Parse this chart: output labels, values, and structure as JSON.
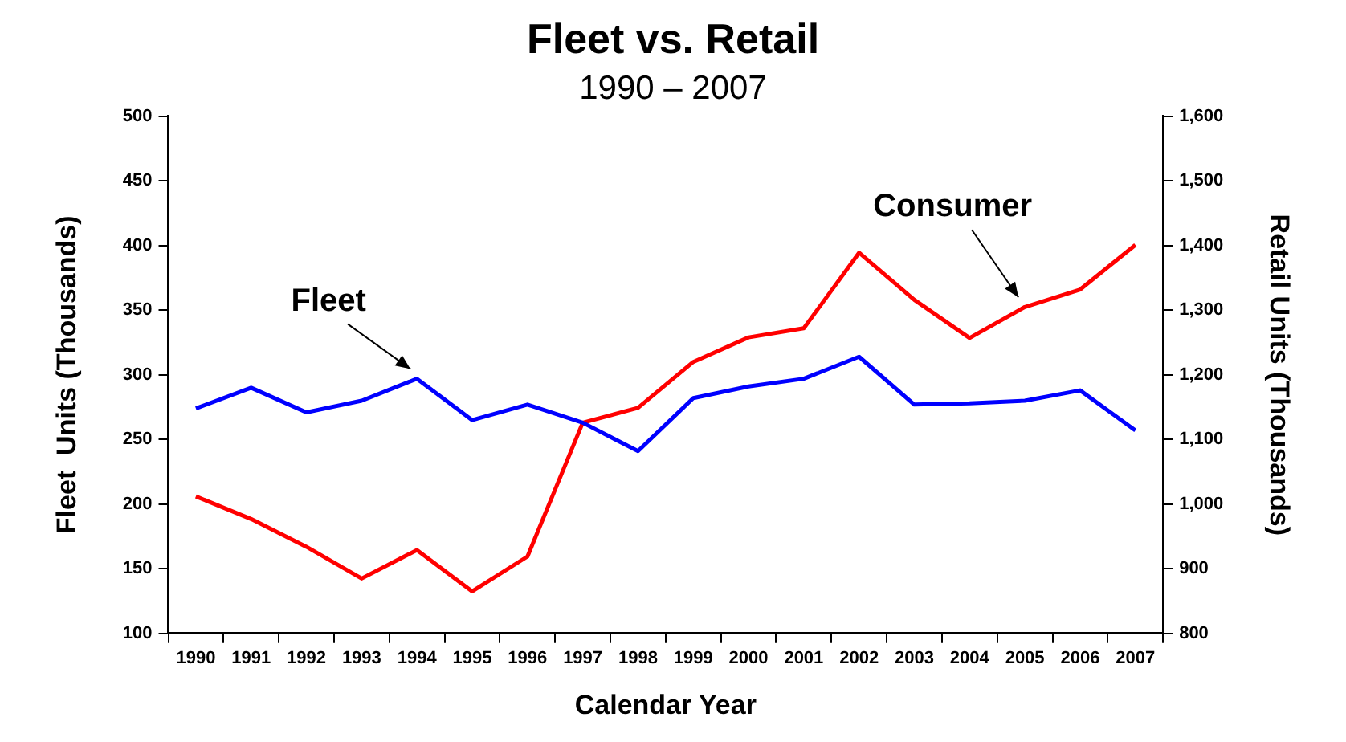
{
  "chart_data": {
    "type": "line",
    "title": "Fleet vs. Retail",
    "subtitle": "1990 – 2007",
    "xlabel": "Calendar Year",
    "ylabel": "Fleet  Units (Thousands)",
    "y2label": "Retail Units (Thousands)",
    "categories": [
      "1990",
      "1991",
      "1992",
      "1993",
      "1994",
      "1995",
      "1996",
      "1997",
      "1998",
      "1999",
      "2000",
      "2001",
      "2002",
      "2003",
      "2004",
      "2005",
      "2006",
      "2007"
    ],
    "series": [
      {
        "name": "Fleet",
        "color": "#0000ff",
        "values": [
          274,
          290,
          271,
          280,
          297,
          265,
          277,
          263,
          241,
          282,
          291,
          297,
          314,
          277,
          278,
          280,
          288,
          257
        ]
      },
      {
        "name": "Consumer",
        "color": "#ff0000",
        "axis": "y2",
        "values": [
          1012,
          977,
          934,
          885,
          929,
          865,
          919,
          1126,
          1149,
          1220,
          1258,
          1272,
          1389,
          1316,
          1257,
          1305,
          1332,
          1401
        ]
      }
    ],
    "ylim": [
      100,
      500
    ],
    "yticks": [
      100,
      150,
      200,
      250,
      300,
      350,
      400,
      450,
      500
    ],
    "y2lim": [
      800,
      1600
    ],
    "y2ticks": [
      {
        "value": 800,
        "label": "800"
      },
      {
        "value": 900,
        "label": "900"
      },
      {
        "value": 1000,
        "label": "1,000"
      },
      {
        "value": 1100,
        "label": "1,100"
      },
      {
        "value": 1200,
        "label": "1,200"
      },
      {
        "value": 1300,
        "label": "1,300"
      },
      {
        "value": 1400,
        "label": "1,400"
      },
      {
        "value": 1500,
        "label": "1,500"
      },
      {
        "value": 1600,
        "label": "1,600"
      }
    ],
    "grid": false,
    "legend": false,
    "marker": "none",
    "line_style": "solid"
  }
}
